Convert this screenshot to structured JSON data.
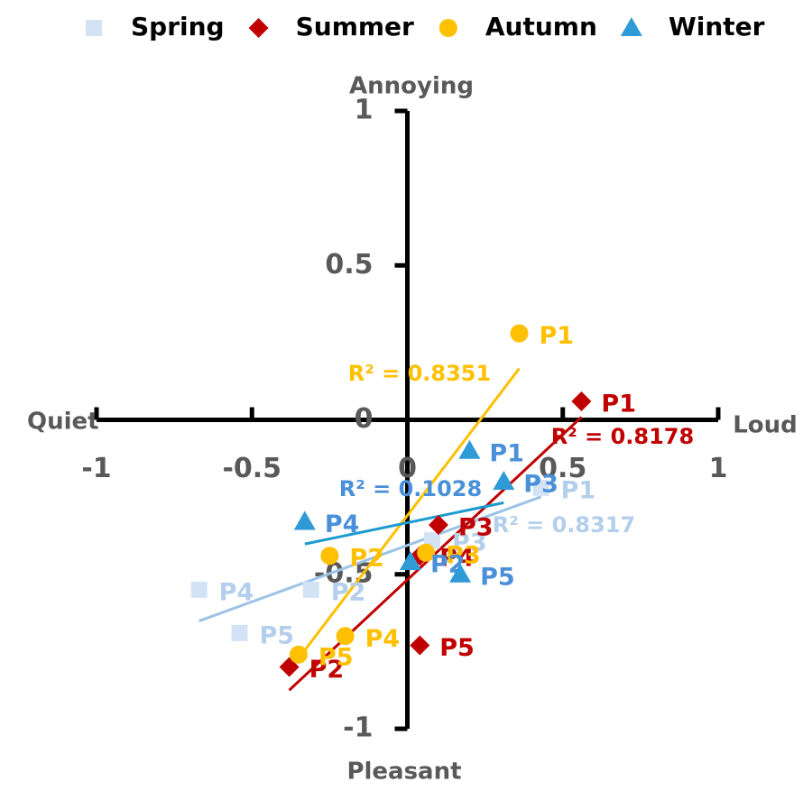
{
  "chart_data": {
    "type": "scatter",
    "x_label_left": "Quiet",
    "x_label_right": "Loud",
    "y_label_top": "Annoying",
    "y_label_bottom": "Pleasant",
    "xlim": [
      -1,
      1
    ],
    "ylim": [
      -1,
      1
    ],
    "xticks": [
      -1,
      -0.5,
      0,
      0.5,
      1
    ],
    "yticks": [
      -1,
      -0.5,
      0,
      0.5,
      1
    ],
    "legend": "top",
    "series": [
      {
        "name": "Spring",
        "color": "#d3e3f5",
        "line_color": "#9dc3e6",
        "label_color": "#b4cfec",
        "marker": "square",
        "labels": [
          "P1",
          "P2",
          "P3",
          "P4",
          "P5"
        ],
        "x": [
          0.43,
          -0.31,
          0.08,
          -0.67,
          -0.54
        ],
        "values": [
          -0.22,
          -0.55,
          -0.39,
          -0.55,
          -0.69
        ],
        "r2_label": "R² = 0.8317"
      },
      {
        "name": "Summer",
        "color": "#c00000",
        "line_color": "#c00000",
        "label_color": "#c00000",
        "marker": "diamond",
        "labels": [
          "P1",
          "P2",
          "P3",
          "P4",
          "P5"
        ],
        "x": [
          0.56,
          -0.38,
          0.1,
          0.04,
          0.04
        ],
        "values": [
          0.06,
          -0.8,
          -0.34,
          -0.44,
          -0.73
        ],
        "r2_label": "R² = 0.8178"
      },
      {
        "name": "Autumn",
        "color": "#ffc000",
        "line_color": "#ffc000",
        "label_color": "#ffc000",
        "marker": "circle",
        "labels": [
          "P1",
          "P2",
          "P3",
          "P4",
          "P5"
        ],
        "x": [
          0.36,
          -0.25,
          0.06,
          -0.2,
          -0.35
        ],
        "values": [
          0.28,
          -0.44,
          -0.43,
          -0.7,
          -0.76
        ],
        "r2_label": "R² = 0.8351"
      },
      {
        "name": "Winter",
        "color": "#2e9ad6",
        "line_color": "#1c9bd0",
        "label_color": "#4a90d9",
        "marker": "triangle",
        "labels": [
          "P1",
          "P2",
          "P3",
          "P4",
          "P5"
        ],
        "x": [
          0.2,
          0.01,
          0.31,
          -0.33,
          0.17
        ],
        "values": [
          -0.1,
          -0.46,
          -0.2,
          -0.33,
          -0.5
        ],
        "r2_label": "R² = 0.1028"
      }
    ]
  }
}
